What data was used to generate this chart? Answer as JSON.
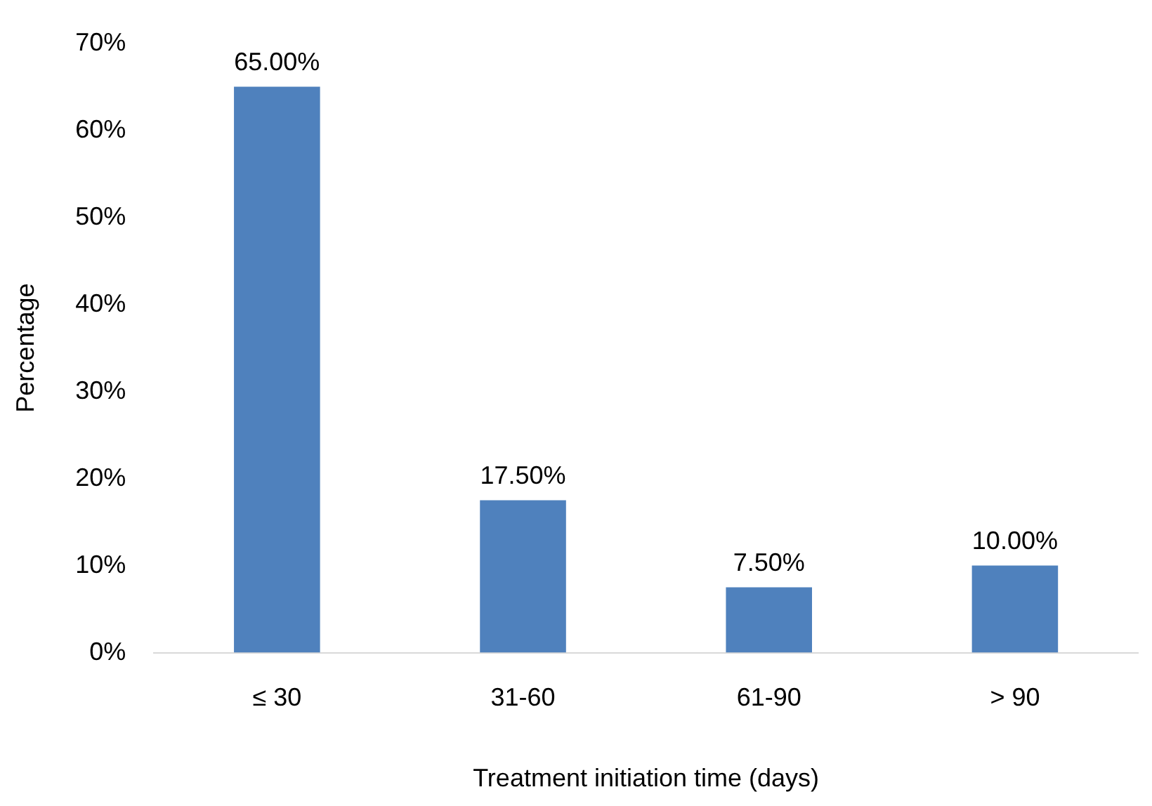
{
  "chart_data": {
    "type": "bar",
    "xlabel": "Treatment initiation time (days)",
    "ylabel": "Percentage",
    "categories": [
      "≤ 30",
      "31-60",
      "61-90",
      "> 90"
    ],
    "values": [
      65,
      17.5,
      7.5,
      10
    ],
    "color": "#4f81bd",
    "value_labels": [
      "65.00%",
      "17.50%",
      "7.50%",
      "10.00%"
    ],
    "ylim": [
      0,
      70
    ],
    "yticks": [
      {
        "value": 0,
        "label": "0%"
      },
      {
        "value": 10,
        "label": "10%"
      },
      {
        "value": 20,
        "label": "20%"
      },
      {
        "value": 30,
        "label": "30%"
      },
      {
        "value": 40,
        "label": "40%"
      },
      {
        "value": 50,
        "label": "50%"
      },
      {
        "value": 60,
        "label": "60%"
      },
      {
        "value": 70,
        "label": "70%"
      }
    ],
    "grid": false,
    "legend": false
  }
}
